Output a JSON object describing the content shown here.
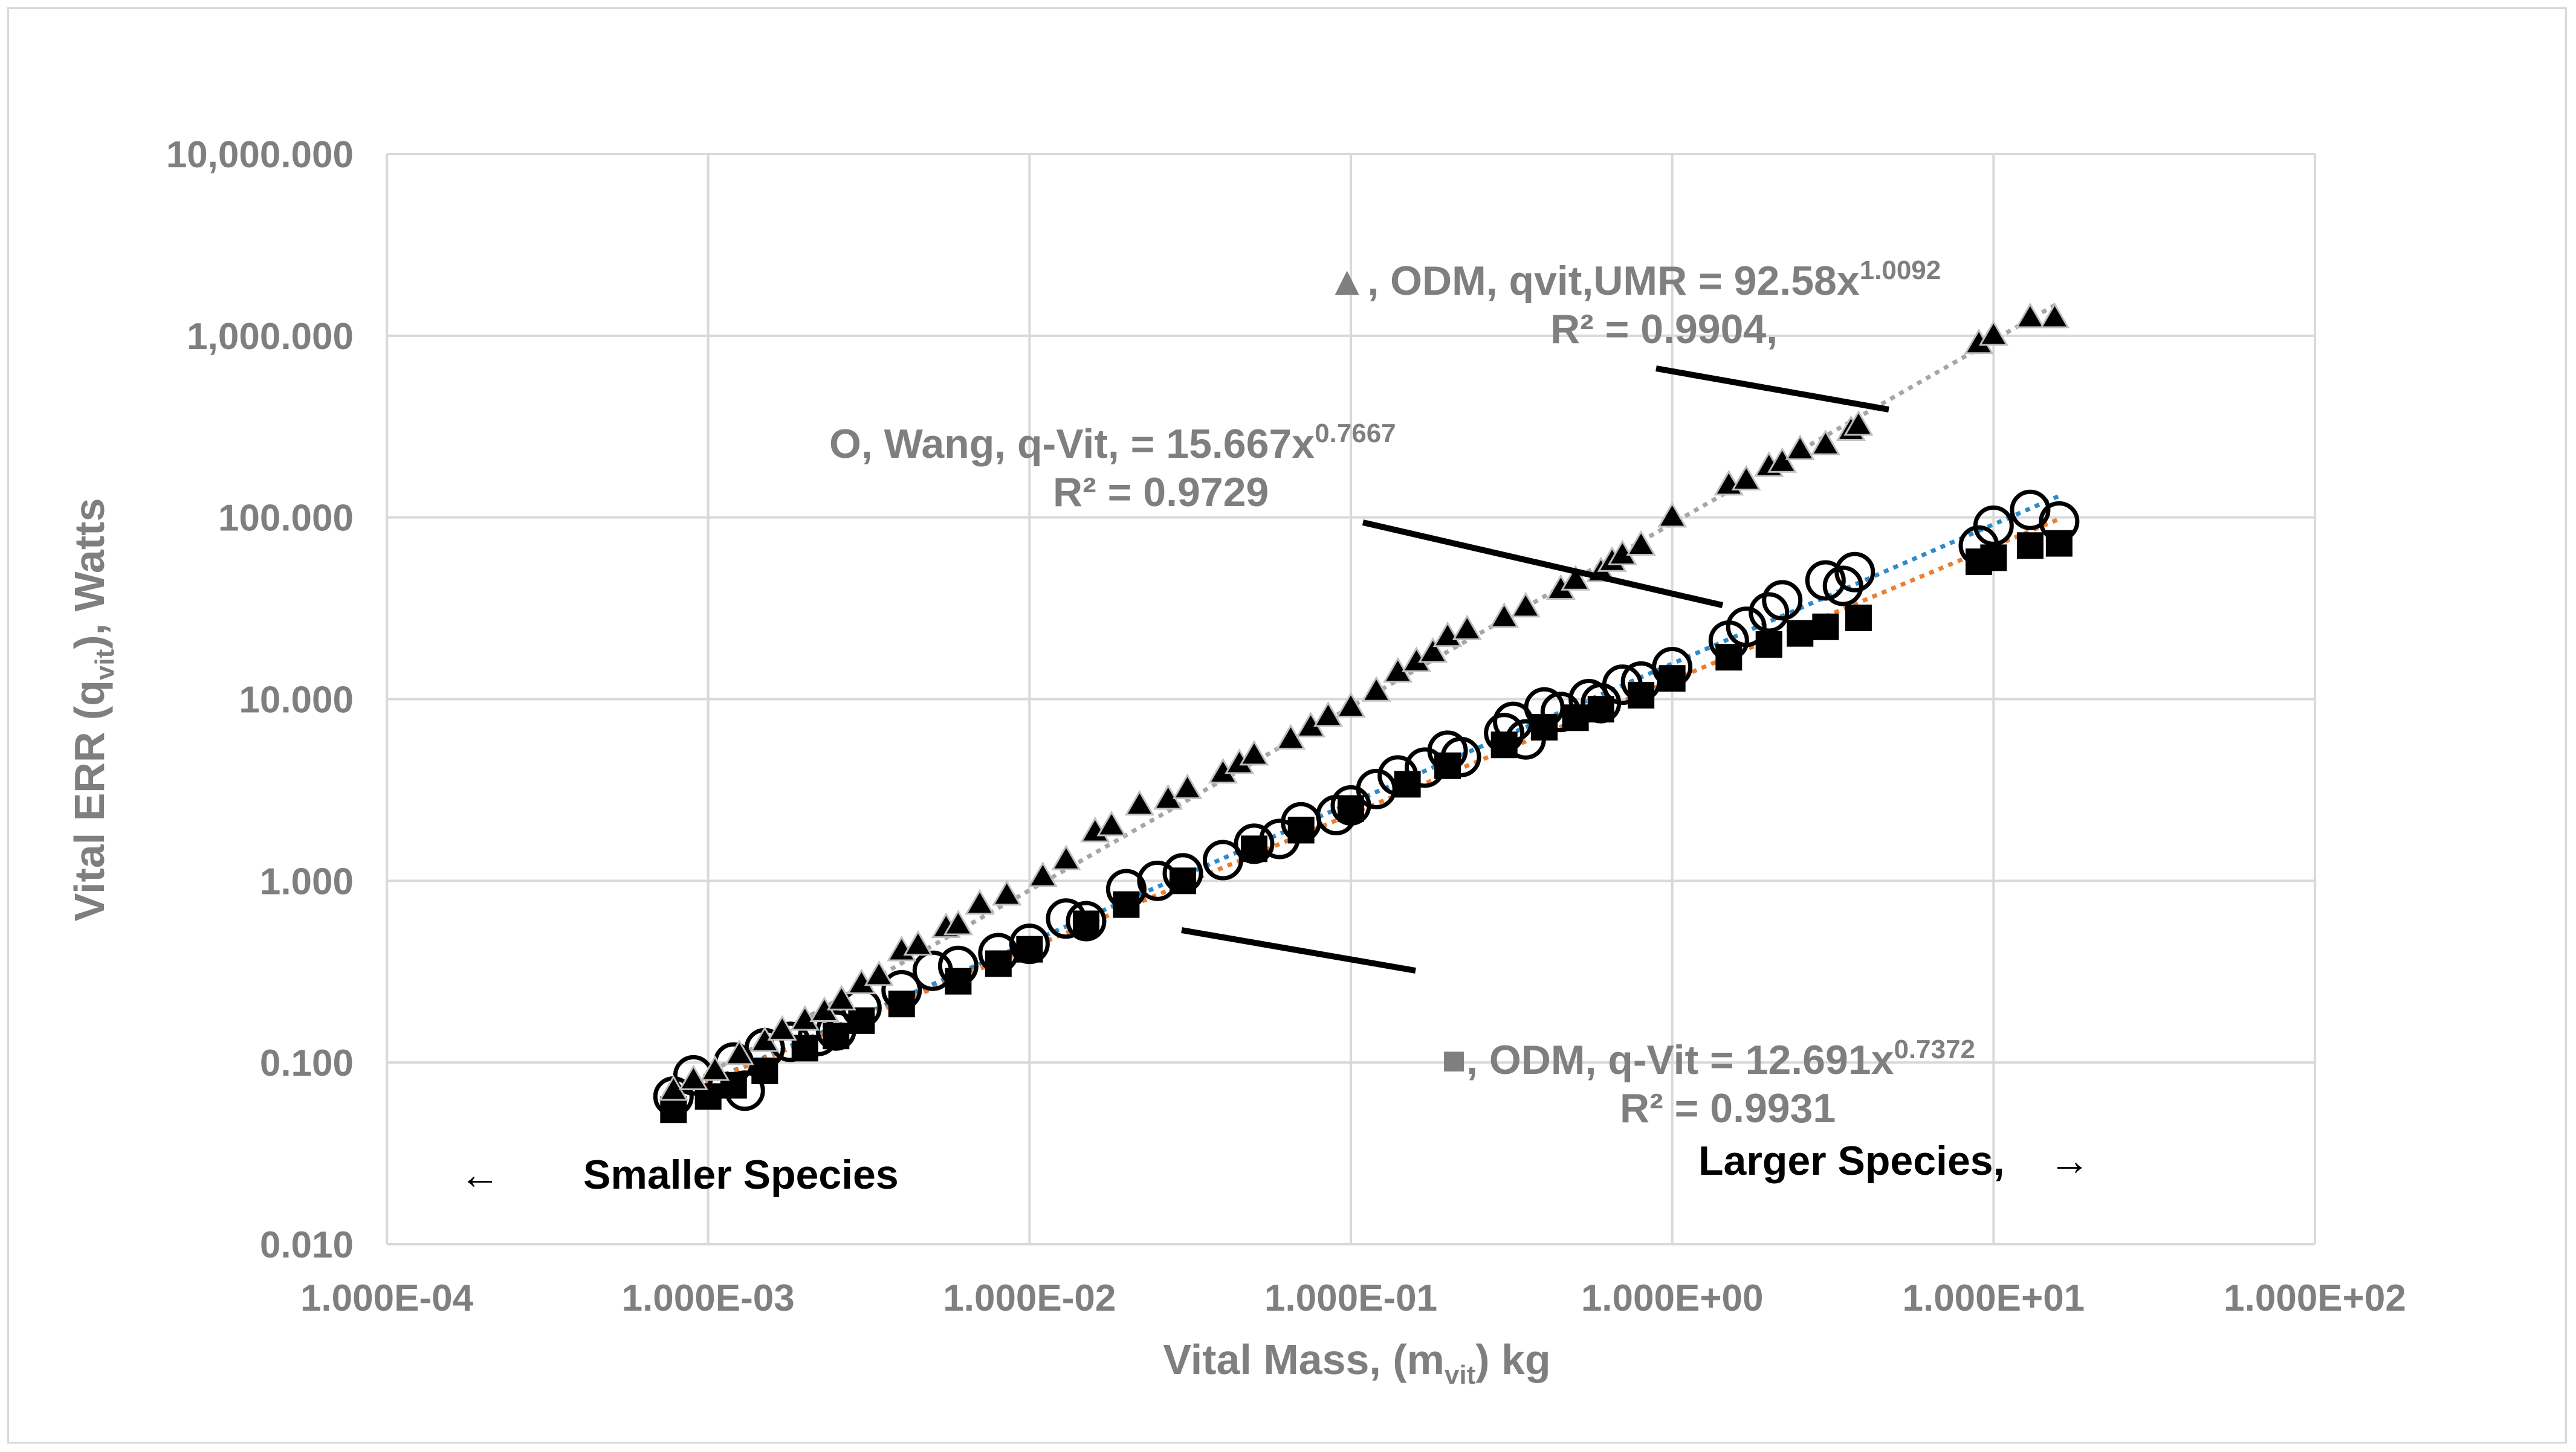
{
  "chart_data": {
    "type": "scatter",
    "title": "",
    "xscale": "log",
    "yscale": "log",
    "xlim": [
      0.0001,
      100
    ],
    "ylim": [
      0.01,
      10000
    ],
    "x_ticks": [
      0.0001,
      0.001,
      0.01,
      0.1,
      1,
      10,
      100
    ],
    "x_tick_labels": [
      "1.000E-04",
      "1.000E-03",
      "1.000E-02",
      "1.000E-01",
      "1.000E+00",
      "1.000E+01",
      "1.000E+02"
    ],
    "y_ticks": [
      0.01,
      0.1,
      1,
      10,
      100,
      1000,
      10000
    ],
    "y_tick_labels": [
      "0.010",
      "0.100",
      "1.000",
      "10.000",
      "100.000",
      "1,000.000",
      "10,000.000"
    ],
    "xlabel": {
      "main": "Vital Mass, (m",
      "sub": "vit",
      "end": ") kg"
    },
    "ylabel": {
      "main": "Vital   ERR (q",
      "sub": "vit",
      "end": "), Watts"
    },
    "grid": true,
    "series": [
      {
        "name": "ODM qvit,UMR",
        "marker": "triangle",
        "color": "#000000",
        "trendline": {
          "a": 92.58,
          "b": 1.0092,
          "color": "#a6a6a6",
          "x_range": [
            0.00075,
            16
          ]
        },
        "x": [
          0.00078,
          0.0009,
          0.00105,
          0.00125,
          0.0015,
          0.0017,
          0.002,
          0.0023,
          0.0026,
          0.003,
          0.0034,
          0.004,
          0.0045,
          0.0055,
          0.006,
          0.007,
          0.0085,
          0.011,
          0.013,
          0.016,
          0.018,
          0.022,
          0.027,
          0.031,
          0.04,
          0.045,
          0.05,
          0.065,
          0.075,
          0.085,
          0.1,
          0.12,
          0.14,
          0.16,
          0.18,
          0.2,
          0.23,
          0.3,
          0.35,
          0.45,
          0.5,
          0.6,
          0.65,
          0.7,
          0.8,
          1.0,
          1.5,
          1.7,
          2.0,
          2.2,
          2.5,
          3.0,
          3.6,
          3.8,
          9.0,
          10.0,
          13.0,
          15.5
        ],
        "y": [
          0.07,
          0.08,
          0.09,
          0.11,
          0.13,
          0.15,
          0.17,
          0.19,
          0.22,
          0.27,
          0.3,
          0.41,
          0.44,
          0.55,
          0.57,
          0.74,
          0.83,
          1.05,
          1.3,
          1.85,
          2.0,
          2.6,
          2.8,
          3.2,
          3.9,
          4.4,
          4.9,
          6.0,
          7.0,
          8.0,
          9.0,
          11.0,
          14.0,
          16.0,
          18.0,
          22.0,
          24.0,
          28.0,
          32.0,
          40.0,
          45.0,
          50.0,
          57.0,
          62.0,
          70.0,
          100.0,
          150.0,
          160.0,
          190.0,
          200.0,
          235.0,
          250.0,
          300.0,
          320.0,
          900.0,
          1000.0,
          1250.0,
          1250.0
        ]
      },
      {
        "name": "Wang q-Vit",
        "marker": "open-circle",
        "color": "#000000",
        "trendline": {
          "a": 15.667,
          "b": 0.7667,
          "color": "#2e8bc9",
          "x_range": [
            0.00075,
            16
          ]
        },
        "x": [
          0.00078,
          0.0009,
          0.0012,
          0.0013,
          0.0015,
          0.0018,
          0.0022,
          0.0025,
          0.003,
          0.004,
          0.005,
          0.006,
          0.008,
          0.01,
          0.013,
          0.015,
          0.02,
          0.025,
          0.03,
          0.04,
          0.05,
          0.06,
          0.07,
          0.09,
          0.1,
          0.12,
          0.14,
          0.17,
          0.2,
          0.22,
          0.3,
          0.32,
          0.35,
          0.4,
          0.45,
          0.55,
          0.6,
          0.7,
          0.8,
          1.0,
          1.5,
          1.7,
          2.0,
          2.2,
          3.0,
          3.4,
          3.7,
          9.0,
          10.0,
          13.0,
          16.0
        ],
        "y": [
          0.065,
          0.085,
          0.1,
          0.07,
          0.12,
          0.13,
          0.14,
          0.15,
          0.2,
          0.25,
          0.32,
          0.34,
          0.4,
          0.45,
          0.62,
          0.6,
          0.9,
          1.0,
          1.1,
          1.3,
          1.6,
          1.7,
          2.1,
          2.3,
          2.6,
          3.2,
          3.8,
          4.2,
          5.2,
          4.8,
          6.5,
          7.5,
          6.0,
          9.0,
          8.5,
          10.0,
          9.5,
          12.0,
          12.5,
          15.0,
          21.0,
          25.0,
          30.0,
          35.0,
          45.0,
          42.0,
          50.0,
          70.0,
          90.0,
          110.0,
          95.0
        ]
      },
      {
        "name": "ODM q-Vit",
        "marker": "filled-square",
        "color": "#000000",
        "trendline": {
          "a": 12.691,
          "b": 0.7372,
          "color": "#ed7d31",
          "x_range": [
            0.00075,
            16
          ]
        },
        "x": [
          0.00078,
          0.001,
          0.0012,
          0.0015,
          0.002,
          0.0025,
          0.003,
          0.004,
          0.006,
          0.008,
          0.01,
          0.015,
          0.02,
          0.03,
          0.05,
          0.07,
          0.1,
          0.15,
          0.2,
          0.3,
          0.4,
          0.5,
          0.6,
          0.8,
          1.0,
          1.5,
          2.0,
          2.5,
          3.0,
          3.8,
          9.0,
          10.0,
          13.0,
          16.0
        ],
        "y": [
          0.055,
          0.065,
          0.075,
          0.09,
          0.12,
          0.14,
          0.17,
          0.21,
          0.28,
          0.35,
          0.42,
          0.58,
          0.74,
          1.0,
          1.5,
          1.9,
          2.5,
          3.4,
          4.3,
          5.6,
          7.0,
          7.9,
          8.8,
          10.5,
          13.0,
          17.0,
          20.0,
          23.0,
          25.0,
          28.0,
          57.0,
          60.0,
          70.0,
          72.0
        ]
      }
    ],
    "annotations": {
      "odm_umr": {
        "marker_glyph": "▲",
        "line1_prefix": ", ODM,    qvit,UMR  = 92.58x",
        "line1_exp": "1.0092",
        "line2": "R² = 0.9904,"
      },
      "wang": {
        "line1_prefix": "O, Wang,      q-Vit,  = 15.667x",
        "line1_exp": "0.7667",
        "line2": "R² = 0.9729"
      },
      "odm_qvit": {
        "marker_glyph": "■",
        "line1_prefix": ", ODM, q-Vit = 12.691x",
        "line1_exp": "0.7372",
        "line2": "R² = 0.9931"
      },
      "smaller_species": "Smaller Species",
      "smaller_arrow": "←",
      "larger_species": "Larger Species,",
      "larger_arrow": "→"
    }
  }
}
